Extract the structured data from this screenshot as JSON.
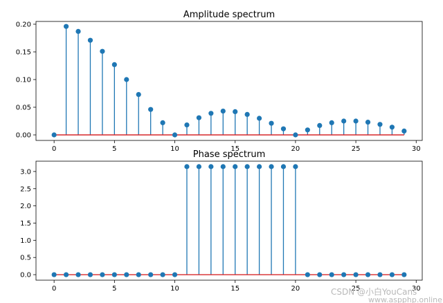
{
  "chart_data": [
    {
      "type": "stem",
      "title": "Amplitude spectrum",
      "xlim": [
        -1.5,
        30.5
      ],
      "ylim": [
        -0.01,
        0.205
      ],
      "xticks": [
        0,
        5,
        10,
        15,
        20,
        25,
        30
      ],
      "yticks": [
        0.0,
        0.05,
        0.1,
        0.15,
        0.2
      ],
      "yticks_fmt": 2,
      "grid": false,
      "x": [
        0,
        1,
        2,
        3,
        4,
        5,
        6,
        7,
        8,
        9,
        10,
        11,
        12,
        13,
        14,
        15,
        16,
        17,
        18,
        19,
        20,
        21,
        22,
        23,
        24,
        25,
        26,
        27,
        28,
        29
      ],
      "values": [
        0.0,
        0.196,
        0.187,
        0.171,
        0.151,
        0.127,
        0.1,
        0.073,
        0.046,
        0.022,
        0.0,
        0.018,
        0.031,
        0.039,
        0.043,
        0.042,
        0.037,
        0.03,
        0.021,
        0.011,
        0.0,
        0.009,
        0.017,
        0.022,
        0.025,
        0.025,
        0.023,
        0.019,
        0.014,
        0.007
      ],
      "baseline": 0
    },
    {
      "type": "stem",
      "title": "Phase spectrum",
      "xlim": [
        -1.5,
        30.5
      ],
      "ylim": [
        -0.16,
        3.3
      ],
      "xticks": [
        0,
        5,
        10,
        15,
        20,
        25,
        30
      ],
      "yticks": [
        0.0,
        0.5,
        1.0,
        1.5,
        2.0,
        2.5,
        3.0
      ],
      "yticks_fmt": 1,
      "grid": false,
      "x": [
        0,
        1,
        2,
        3,
        4,
        5,
        6,
        7,
        8,
        9,
        10,
        11,
        12,
        13,
        14,
        15,
        16,
        17,
        18,
        19,
        20,
        21,
        22,
        23,
        24,
        25,
        26,
        27,
        28,
        29
      ],
      "values": [
        0,
        0,
        0,
        0,
        0,
        0,
        0,
        0,
        0,
        0,
        0,
        3.1416,
        3.1416,
        3.1416,
        3.1416,
        3.1416,
        3.1416,
        3.1416,
        3.1416,
        3.1416,
        3.1416,
        0,
        0,
        0,
        0,
        0,
        0,
        0,
        0,
        0
      ],
      "baseline": 0
    }
  ],
  "watermark": "CSDN @小白YouCans",
  "watermark2": "www.aspphp.online"
}
